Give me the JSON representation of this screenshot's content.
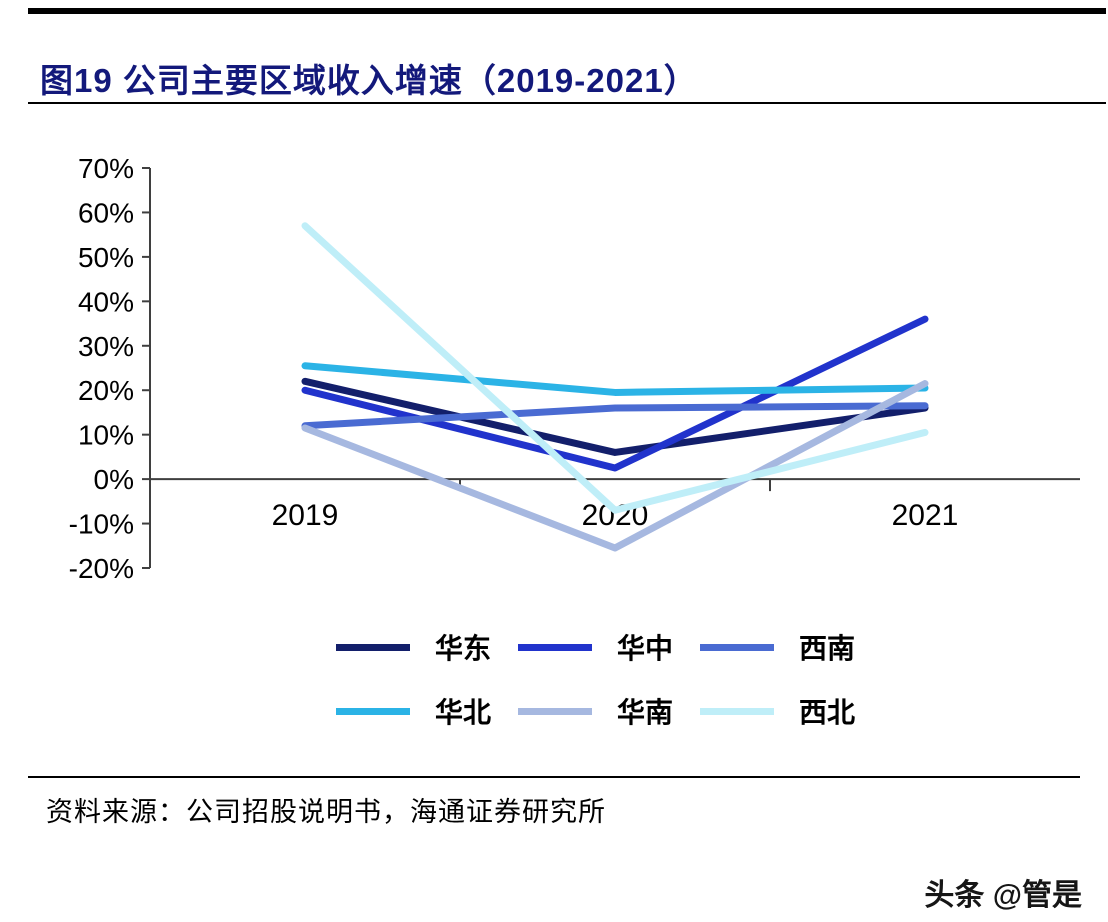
{
  "header": {
    "title": "图19 公司主要区域收入增速（2019-2021）"
  },
  "footer": {
    "source": "资料来源：公司招股说明书，海通证券研究所"
  },
  "watermark": "头条 @管是",
  "colors": {
    "title": "#13197b",
    "axis": "#3f3f3f",
    "background": "#ffffff"
  },
  "chart_data": {
    "type": "line",
    "title": "公司主要区域收入增速（2019-2021）",
    "categories": [
      "2019",
      "2020",
      "2021"
    ],
    "series": [
      {
        "name": "华东",
        "color": "#131f6b",
        "values": [
          22,
          6,
          16
        ]
      },
      {
        "name": "华中",
        "color": "#2133cc",
        "values": [
          20,
          2.5,
          36
        ]
      },
      {
        "name": "西南",
        "color": "#4a6bd2",
        "values": [
          12,
          16,
          16.5
        ]
      },
      {
        "name": "华北",
        "color": "#2bb3e6",
        "values": [
          25.5,
          19.5,
          20.5
        ]
      },
      {
        "name": "华南",
        "color": "#a6b8e0",
        "values": [
          11.5,
          -15.5,
          21.5
        ]
      },
      {
        "name": "西北",
        "color": "#bfeef8",
        "values": [
          57,
          -7,
          10.5
        ]
      }
    ],
    "xlabel": "",
    "ylabel": "",
    "ylim": [
      -20,
      70
    ],
    "ytick_step": 10,
    "ytick_labels": [
      "70%",
      "60%",
      "50%",
      "40%",
      "30%",
      "20%",
      "10%",
      "0%",
      "-10%",
      "-20%"
    ],
    "grid": false,
    "legend_position": "bottom",
    "legend_columns": 3
  }
}
